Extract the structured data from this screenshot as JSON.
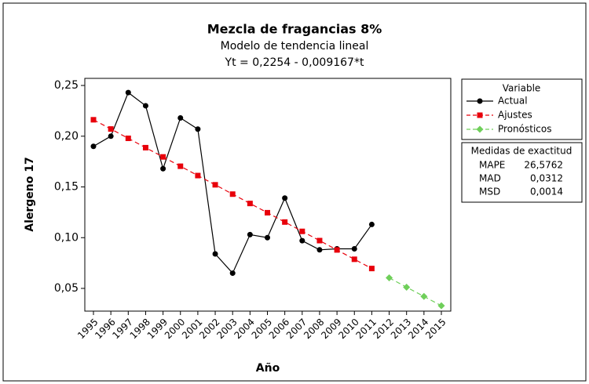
{
  "chart_data": {
    "type": "line",
    "title": "Mezcla de fragancias 8%",
    "subtitle": "Modelo de tendencia lineal",
    "equation": "Yt = 0,2254 - 0,009167*t",
    "xlabel": "Año",
    "ylabel": "Alergeno 17",
    "categories": [
      "1995",
      "1996",
      "1997",
      "1998",
      "1999",
      "2000",
      "2001",
      "2002",
      "2003",
      "2004",
      "2005",
      "2006",
      "2007",
      "2008",
      "2009",
      "2010",
      "2011",
      "2012",
      "2013",
      "2014",
      "2015"
    ],
    "ylim": [
      0.0276,
      0.257
    ],
    "yticks": [
      {
        "value": 0.05,
        "label": "0,05"
      },
      {
        "value": 0.1,
        "label": "0,10"
      },
      {
        "value": 0.15,
        "label": "0,15"
      },
      {
        "value": 0.2,
        "label": "0,20"
      },
      {
        "value": 0.25,
        "label": "0,25"
      }
    ],
    "legend_title": "Variable",
    "series": [
      {
        "name": "Actual",
        "color": "#000000",
        "marker": "circle",
        "line": "solid",
        "values": [
          0.19,
          0.2,
          0.243,
          0.23,
          0.168,
          0.218,
          0.207,
          0.084,
          0.065,
          0.103,
          0.1,
          0.139,
          0.097,
          0.088,
          0.089,
          0.089,
          0.113,
          null,
          null,
          null,
          null
        ]
      },
      {
        "name": "Ajustes",
        "color": "#e8000b",
        "marker": "square",
        "line": "dashed",
        "values": [
          0.2162,
          0.2071,
          0.1979,
          0.1887,
          0.1796,
          0.1704,
          0.1612,
          0.1521,
          0.1429,
          0.1337,
          0.1246,
          0.1154,
          0.1062,
          0.0971,
          0.0879,
          0.0787,
          0.0696,
          null,
          null,
          null,
          null
        ]
      },
      {
        "name": "Pronósticos",
        "color": "#6fcf5a",
        "marker": "diamond",
        "line": "dashed",
        "values": [
          null,
          null,
          null,
          null,
          null,
          null,
          null,
          null,
          null,
          null,
          null,
          null,
          null,
          null,
          null,
          null,
          null,
          0.0604,
          0.0512,
          0.0421,
          0.0329
        ]
      }
    ],
    "accuracy": {
      "title": "Medidas de exactitud",
      "rows": [
        [
          "MAPE",
          "26,5762"
        ],
        [
          "MAD",
          "0,0312"
        ],
        [
          "MSD",
          "0,0014"
        ]
      ]
    }
  }
}
